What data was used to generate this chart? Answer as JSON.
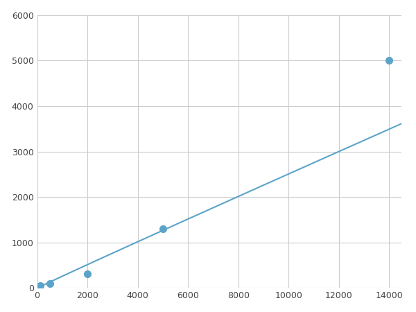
{
  "x_data": [
    125,
    500,
    2000,
    5000,
    14000
  ],
  "y_data": [
    50,
    100,
    310,
    1300,
    5000
  ],
  "line_color": "#5BA3C9",
  "marker_color": "#5BA3C9",
  "marker_size": 7,
  "xlim": [
    0,
    14500
  ],
  "ylim": [
    0,
    6000
  ],
  "xticks": [
    0,
    2000,
    4000,
    6000,
    8000,
    10000,
    12000,
    14000
  ],
  "yticks": [
    0,
    1000,
    2000,
    3000,
    4000,
    5000,
    6000
  ],
  "grid_color": "#cccccc",
  "background_color": "#ffffff",
  "figsize": [
    6.0,
    4.5
  ],
  "dpi": 100
}
